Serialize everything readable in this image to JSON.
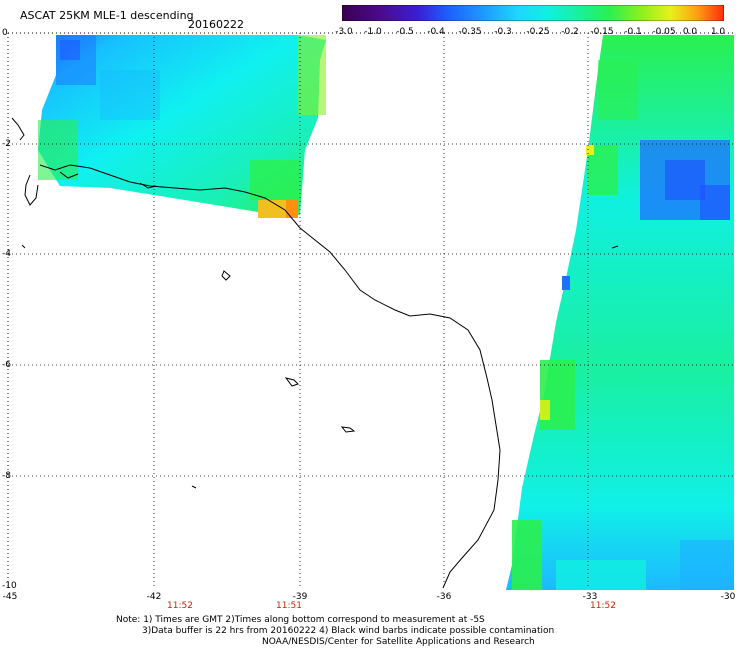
{
  "title": "ASCAT 25KM MLE-1 descending",
  "date": "20160222",
  "colorbar": {
    "labels": [
      "-3.0",
      "-1.0",
      "-0.5",
      "-0.4",
      "-0.35",
      "-0.3",
      "-0.25",
      "-0.2",
      "-0.15",
      "-0.1",
      "-0.05",
      "0.0",
      "1.0"
    ],
    "colors": [
      "#3a0050",
      "#4b0a8c",
      "#3a1fd6",
      "#1e60ff",
      "#1da0ff",
      "#1fd6ff",
      "#10f0e0",
      "#19f09c",
      "#2af04f",
      "#88f01f",
      "#e8f01c",
      "#ff9f10",
      "#ff3b10"
    ]
  },
  "axes": {
    "y_labels": [
      "0",
      "-2",
      "-4",
      "-6",
      "-8",
      "-10"
    ],
    "x_labels": [
      "-45",
      "-42",
      "-39",
      "-36",
      "-33",
      "-30"
    ]
  },
  "times": [
    "11:52",
    "11:51",
    "11:52"
  ],
  "notes": [
    "Note: 1) Times are GMT 2)Times along bottom correspond to measurement at -5S",
    "3)Data buffer is 22 hrs from 20160222 4) Black wind barbs indicate possible contamination",
    "NOAA/NESDIS/Center for Satellite Applications and Research"
  ]
}
